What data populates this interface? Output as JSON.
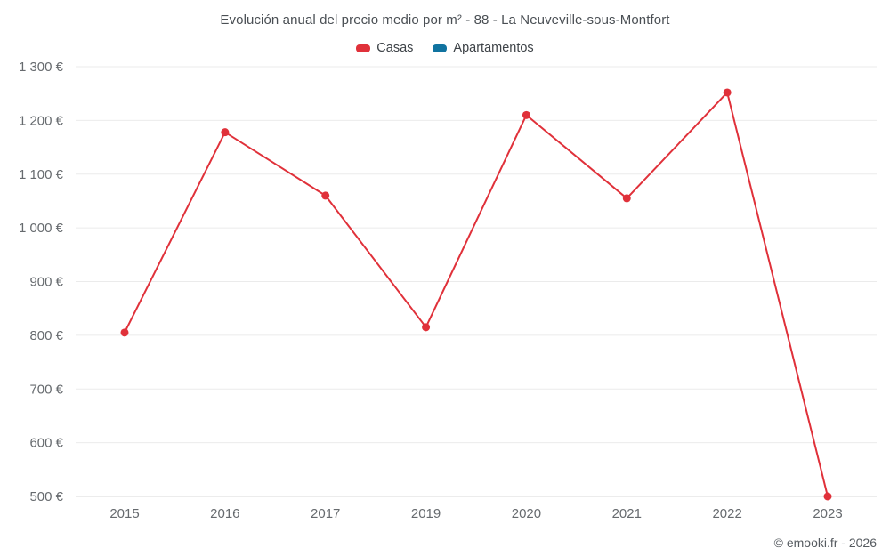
{
  "title": "Evolución anual del precio medio por m² - 88 - La Neuveville-sous-Montfort",
  "legend": [
    {
      "label": "Casas",
      "color": "#e0313a"
    },
    {
      "label": "Apartamentos",
      "color": "#1073a0"
    }
  ],
  "footer": "© emooki.fr - 2026",
  "chart_data": {
    "type": "line",
    "title": "Evolución anual del precio medio por m² - 88 - La Neuveville-sous-Montfort",
    "categories": [
      "2015",
      "2016",
      "2017",
      "2019",
      "2020",
      "2021",
      "2022",
      "2023"
    ],
    "series": [
      {
        "name": "Casas",
        "color": "#e0313a",
        "values": [
          805,
          1178,
          1060,
          815,
          1210,
          1055,
          1252,
          500
        ]
      },
      {
        "name": "Apartamentos",
        "color": "#1073a0",
        "values": []
      }
    ],
    "xlabel": "",
    "ylabel": "",
    "ylim": [
      500,
      1300
    ],
    "ytick_step": 100,
    "ytick_format": "{value} €",
    "grid": true,
    "legend_position": "top",
    "gridline_color": "#ebebeb",
    "baseline_color": "#d9d9d9"
  }
}
